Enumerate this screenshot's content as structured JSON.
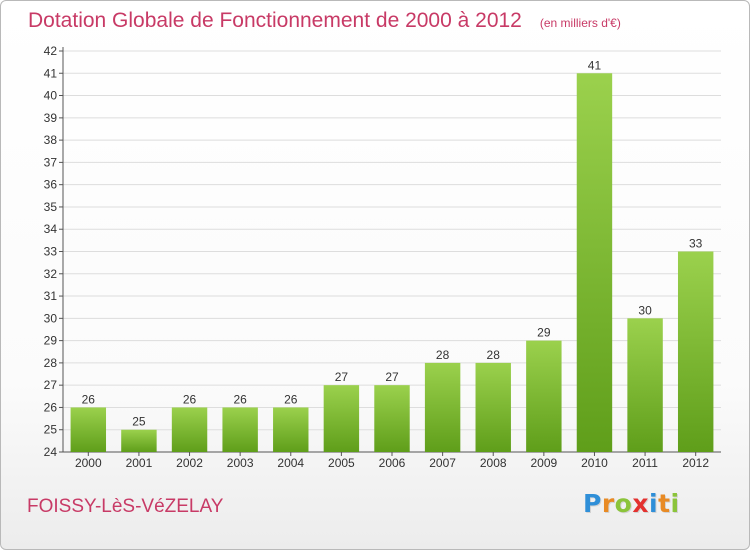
{
  "title": "Dotation Globale de Fonctionnement de 2000 à 2012",
  "subtitle": "(en milliers d'€)",
  "commune": "FOISSY-LèS-VéZELAY",
  "logo": {
    "letters": [
      "P",
      "r",
      "o",
      "x",
      "i",
      "t",
      "i"
    ],
    "colors": [
      "#2f8fd8",
      "#e88a24",
      "#8bc43a",
      "#e3312f",
      "#2f8fd8",
      "#e88a24",
      "#8bc43a"
    ]
  },
  "colors": {
    "bar_light": "#9bd14d",
    "bar_dark": "#5f9e1a",
    "title": "#c83a66",
    "grid": "#dddddd"
  },
  "chart_data": {
    "type": "bar",
    "title": "Dotation Globale de Fonctionnement de 2000 à 2012",
    "subtitle": "(en milliers d'€)",
    "categories": [
      "2000",
      "2001",
      "2002",
      "2003",
      "2004",
      "2005",
      "2006",
      "2007",
      "2008",
      "2009",
      "2010",
      "2011",
      "2012"
    ],
    "values": [
      26,
      25,
      26,
      26,
      26,
      27,
      27,
      28,
      28,
      29,
      41,
      30,
      33
    ],
    "ylim": [
      24,
      42
    ],
    "yticks": [
      24,
      25,
      26,
      27,
      28,
      29,
      30,
      31,
      32,
      33,
      34,
      35,
      36,
      37,
      38,
      39,
      40,
      41,
      42
    ],
    "grid": "horizontal",
    "xlabel": "",
    "ylabel": ""
  }
}
